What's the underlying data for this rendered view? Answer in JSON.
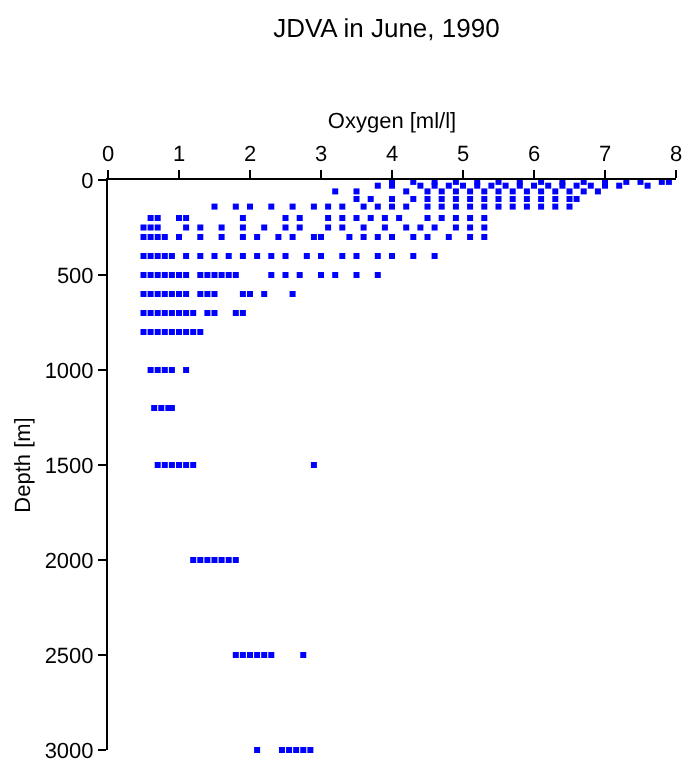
{
  "chart_data": {
    "type": "scatter",
    "title": "JDVA in June, 1990",
    "xlabel": "Oxygen [ml/l]",
    "ylabel": "Depth [m]",
    "xlim": [
      0,
      8
    ],
    "xticks": [
      0,
      1,
      2,
      3,
      4,
      5,
      6,
      7,
      8
    ],
    "ylim": [
      3000,
      0
    ],
    "yticks": [
      0,
      500,
      1000,
      1500,
      2000,
      2500,
      3000
    ],
    "grid": false,
    "marker": "square",
    "color": "#0000ff",
    "x": [
      2.1,
      2.45,
      2.55,
      2.65,
      2.75,
      2.85,
      1.8,
      1.9,
      2.0,
      2.1,
      2.2,
      2.3,
      2.75,
      1.2,
      1.3,
      1.4,
      1.5,
      1.6,
      1.7,
      1.8,
      0.7,
      0.8,
      0.9,
      1.0,
      1.1,
      1.2,
      2.9,
      0.65,
      0.75,
      0.85,
      0.9,
      0.6,
      0.7,
      0.8,
      0.9,
      1.1,
      0.5,
      0.6,
      0.7,
      0.8,
      0.9,
      1.0,
      1.1,
      1.2,
      1.3,
      0.5,
      0.6,
      0.7,
      0.8,
      0.9,
      1.0,
      1.1,
      1.2,
      1.4,
      1.5,
      1.8,
      1.9,
      0.5,
      0.6,
      0.7,
      0.8,
      0.9,
      1.0,
      1.1,
      1.3,
      1.4,
      1.5,
      1.9,
      2.0,
      2.2,
      2.6,
      0.5,
      0.6,
      0.7,
      0.8,
      0.9,
      1.0,
      1.1,
      1.3,
      1.4,
      1.5,
      1.6,
      1.7,
      1.8,
      2.3,
      2.5,
      2.7,
      3.0,
      3.2,
      3.5,
      3.8,
      0.5,
      0.6,
      0.7,
      0.8,
      0.9,
      1.1,
      1.3,
      1.5,
      1.7,
      1.9,
      2.1,
      2.3,
      2.5,
      2.8,
      3.0,
      3.3,
      3.5,
      3.8,
      4.0,
      4.3,
      4.6,
      0.5,
      0.6,
      0.7,
      0.8,
      1.0,
      1.3,
      1.6,
      1.9,
      2.1,
      2.4,
      2.6,
      2.9,
      3.0,
      3.4,
      3.6,
      3.8,
      4.0,
      4.3,
      4.5,
      4.8,
      5.1,
      5.3,
      0.5,
      0.6,
      0.7,
      1.1,
      1.3,
      1.6,
      1.9,
      2.2,
      2.5,
      2.7,
      3.1,
      3.3,
      3.6,
      3.9,
      4.2,
      4.4,
      4.6,
      4.9,
      5.1,
      5.3,
      0.6,
      0.7,
      1.0,
      1.1,
      1.9,
      2.5,
      2.7,
      3.1,
      3.3,
      3.5,
      3.7,
      3.9,
      4.1,
      4.5,
      4.7,
      4.9,
      5.1,
      5.3,
      1.5,
      1.8,
      2.0,
      2.3,
      2.6,
      2.9,
      3.1,
      3.3,
      3.6,
      3.8,
      4.0,
      4.2,
      4.5,
      4.7,
      4.9,
      5.1,
      5.3,
      5.5,
      5.7,
      5.9,
      6.1,
      6.3,
      6.5,
      3.5,
      3.7,
      4.0,
      4.3,
      4.5,
      4.7,
      4.9,
      5.1,
      5.3,
      5.5,
      5.7,
      5.9,
      6.1,
      6.3,
      6.5,
      6.6,
      3.2,
      3.5,
      4.2,
      4.5,
      4.7,
      4.9,
      5.1,
      5.3,
      5.5,
      5.7,
      5.9,
      6.1,
      6.3,
      6.5,
      6.7,
      6.9,
      3.8,
      4.0,
      4.4,
      4.6,
      4.8,
      5.0,
      5.2,
      5.4,
      5.6,
      5.8,
      6.0,
      6.2,
      6.4,
      6.6,
      6.8,
      7.0,
      7.2,
      7.6,
      4.0,
      4.3,
      4.6,
      4.9,
      5.2,
      5.5,
      5.8,
      6.1,
      6.4,
      6.7,
      7.0,
      7.3,
      7.5,
      7.8,
      7.9
    ],
    "values": [
      3000,
      3000,
      3000,
      3000,
      3000,
      3000,
      2500,
      2500,
      2500,
      2500,
      2500,
      2500,
      2500,
      2000,
      2000,
      2000,
      2000,
      2000,
      2000,
      2000,
      1500,
      1500,
      1500,
      1500,
      1500,
      1500,
      1500,
      1200,
      1200,
      1200,
      1200,
      1000,
      1000,
      1000,
      1000,
      1000,
      800,
      800,
      800,
      800,
      800,
      800,
      800,
      800,
      800,
      700,
      700,
      700,
      700,
      700,
      700,
      700,
      700,
      700,
      700,
      700,
      700,
      600,
      600,
      600,
      600,
      600,
      600,
      600,
      600,
      600,
      600,
      600,
      600,
      600,
      600,
      500,
      500,
      500,
      500,
      500,
      500,
      500,
      500,
      500,
      500,
      500,
      500,
      500,
      500,
      500,
      500,
      500,
      500,
      500,
      500,
      400,
      400,
      400,
      400,
      400,
      400,
      400,
      400,
      400,
      400,
      400,
      400,
      400,
      400,
      400,
      400,
      400,
      400,
      400,
      400,
      400,
      300,
      300,
      300,
      300,
      300,
      300,
      300,
      300,
      300,
      300,
      300,
      300,
      300,
      300,
      300,
      300,
      300,
      300,
      300,
      300,
      300,
      300,
      250,
      250,
      250,
      250,
      250,
      250,
      250,
      250,
      250,
      250,
      250,
      250,
      250,
      250,
      250,
      250,
      250,
      250,
      250,
      250,
      200,
      200,
      200,
      200,
      200,
      200,
      200,
      200,
      200,
      200,
      200,
      200,
      200,
      200,
      200,
      200,
      200,
      200,
      140,
      140,
      140,
      140,
      140,
      140,
      140,
      140,
      140,
      140,
      140,
      140,
      140,
      140,
      140,
      140,
      140,
      140,
      140,
      140,
      140,
      140,
      140,
      100,
      100,
      100,
      100,
      100,
      100,
      100,
      100,
      100,
      100,
      100,
      100,
      100,
      100,
      100,
      100,
      60,
      60,
      60,
      60,
      60,
      60,
      60,
      60,
      60,
      60,
      60,
      60,
      60,
      60,
      60,
      60,
      30,
      30,
      30,
      30,
      30,
      30,
      30,
      30,
      30,
      30,
      30,
      30,
      30,
      30,
      30,
      30,
      30,
      30,
      10,
      10,
      10,
      10,
      10,
      10,
      10,
      10,
      10,
      10,
      10,
      10,
      10,
      10,
      10
    ]
  }
}
